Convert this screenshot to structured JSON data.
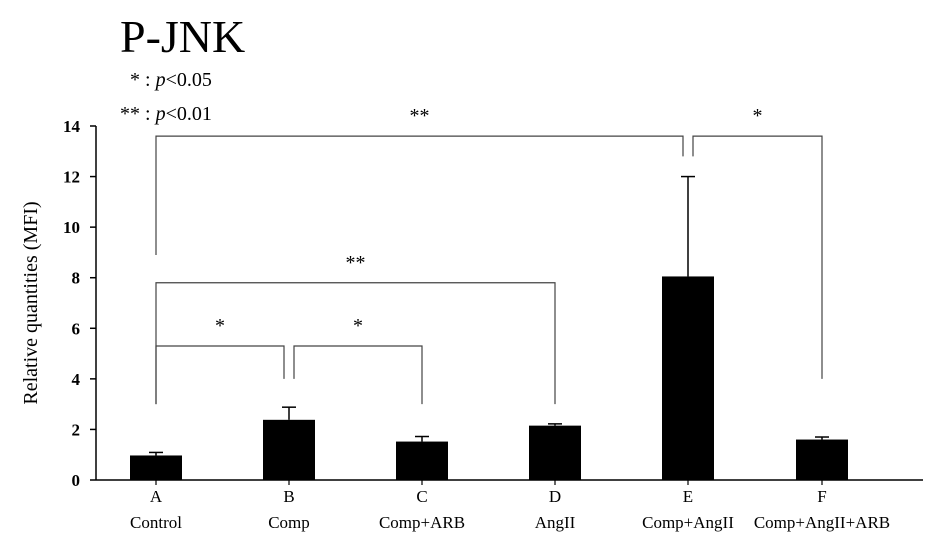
{
  "chart_data": {
    "type": "bar",
    "title": "P-JNK",
    "legend": [
      {
        "symbol": "*",
        "text_prefix": ": ",
        "p_label": "p",
        "threshold": "<0.05"
      },
      {
        "symbol": "**",
        "text_prefix": ": ",
        "p_label": "p",
        "threshold": "<0.01"
      }
    ],
    "ylabel": "Relative quantities (MFI)",
    "xlabel": "",
    "ylim": [
      0,
      14
    ],
    "yticks": [
      0,
      2,
      4,
      6,
      8,
      10,
      12,
      14
    ],
    "categories": [
      {
        "letter": "A",
        "name": "Control"
      },
      {
        "letter": "B",
        "name": "Comp"
      },
      {
        "letter": "C",
        "name": "Comp+ARB"
      },
      {
        "letter": "D",
        "name": "AngII"
      },
      {
        "letter": "E",
        "name": "Comp+AngII"
      },
      {
        "letter": "F",
        "name": "Comp+AngII+ARB"
      }
    ],
    "values": [
      0.97,
      2.38,
      1.52,
      2.15,
      8.05,
      1.6
    ],
    "errors": [
      0.12,
      0.5,
      0.2,
      0.07,
      3.95,
      0.1
    ],
    "bar_color": "#000000",
    "grid": false,
    "significance": [
      {
        "from": 0,
        "to": 1,
        "label": "*",
        "level": 5.3,
        "from_y": 3.0,
        "to_y": 4.0
      },
      {
        "from": 1,
        "to": 2,
        "label": "*",
        "level": 5.3,
        "from_y": 4.0,
        "to_y": 3.0
      },
      {
        "from": 0,
        "to": 3,
        "label": "**",
        "level": 7.8,
        "from_y": 3.0,
        "to_y": 3.0
      },
      {
        "from": 0,
        "to": 4,
        "label": "**",
        "level": 13.6,
        "from_y": 8.9,
        "to_y": 12.8
      },
      {
        "from": 4,
        "to": 5,
        "label": "*",
        "level": 13.6,
        "from_y": 12.8,
        "to_y": 4.0
      }
    ]
  }
}
